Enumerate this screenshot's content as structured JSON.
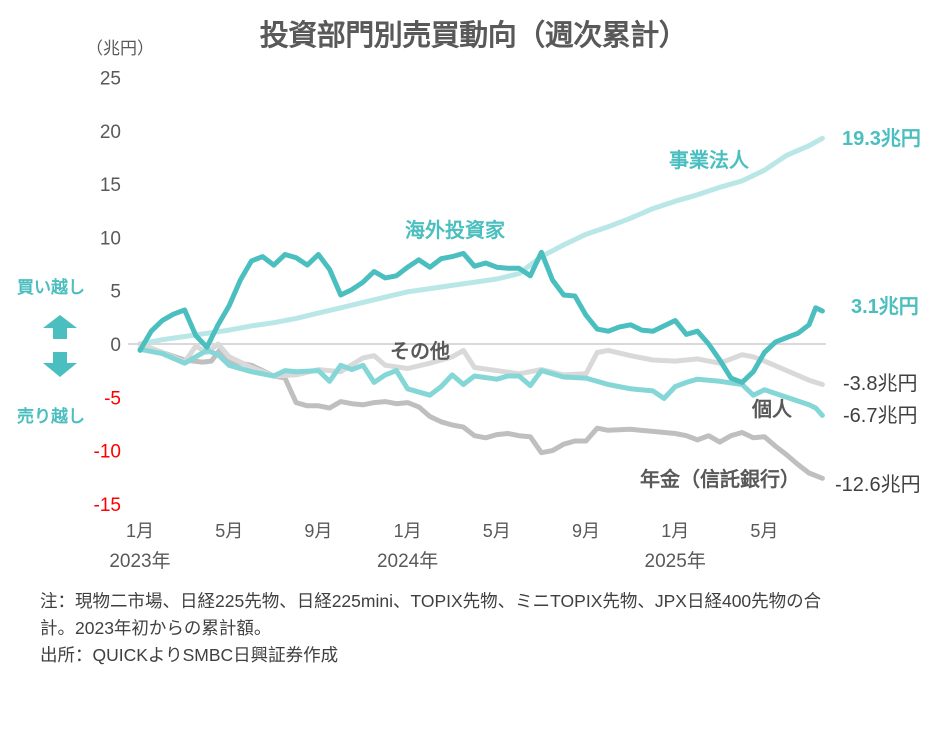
{
  "title": "投資部門別売買動向（週次累計）",
  "unit": "（兆円）",
  "side_labels": {
    "buy": "買い越し",
    "sell": "売り越し"
  },
  "notes": [
    "注：現物二市場、日経225先物、日経225mini、TOPIX先物、ミニTOPIX先物、JPX日経400先物の合",
    "計。2023年初からの累計額。",
    "出所：QUICKよりSMBC日興証券作成"
  ],
  "colors": {
    "foreign": "#4bbfbf",
    "corporate": "#b9e6e6",
    "individual": "#85d6d6",
    "other": "#d9d9d9",
    "pension": "#bfbfbf",
    "teal_text": "#4bbfbf",
    "axis_text": "#595959",
    "negative_tick": "#ff0000",
    "zero_line": "#d9d9d9"
  },
  "chart_data": {
    "type": "line",
    "title": "投資部門別売買動向（週次累計）",
    "xlabel": "",
    "ylabel": "（兆円）",
    "ylim": [
      -15,
      25
    ],
    "yticks": [
      25,
      20,
      15,
      10,
      5,
      0,
      -5,
      -10,
      -15
    ],
    "ytick_labels": [
      "25",
      "20",
      "15",
      "10",
      "5",
      "0",
      "-5",
      "-10",
      "-15"
    ],
    "xlim_months_from_jan2023": [
      0,
      31
    ],
    "xticks": [
      {
        "month": 0,
        "label": "1月",
        "year": "2023年"
      },
      {
        "month": 4,
        "label": "5月",
        "year": ""
      },
      {
        "month": 8,
        "label": "9月",
        "year": ""
      },
      {
        "month": 12,
        "label": "1月",
        "year": "2024年"
      },
      {
        "month": 16,
        "label": "5月",
        "year": ""
      },
      {
        "month": 20,
        "label": "9月",
        "year": ""
      },
      {
        "month": 24,
        "label": "1月",
        "year": "2025年"
      },
      {
        "month": 28,
        "label": "5月",
        "year": ""
      }
    ],
    "grid": false,
    "legend": "inline-labels",
    "series": [
      {
        "key": "corporate",
        "name": "事業法人",
        "end_label": "19.3兆円",
        "x": [
          0,
          1,
          2,
          3,
          4,
          5,
          6,
          7,
          8,
          9,
          10,
          11,
          12,
          13,
          14,
          15,
          16,
          17,
          18,
          19,
          20,
          21,
          22,
          23,
          24,
          25,
          26,
          27,
          28,
          29,
          30,
          30.6
        ],
        "values": [
          0,
          0.4,
          0.7,
          1.0,
          1.3,
          1.7,
          2.0,
          2.4,
          2.9,
          3.4,
          3.9,
          4.4,
          4.9,
          5.2,
          5.5,
          5.8,
          6.1,
          6.6,
          8.2,
          9.3,
          10.3,
          11.0,
          11.8,
          12.7,
          13.4,
          14.0,
          14.7,
          15.3,
          16.3,
          17.7,
          18.6,
          19.3
        ]
      },
      {
        "key": "foreign",
        "name": "海外投資家",
        "end_label": "3.1兆円",
        "x": [
          0,
          0.5,
          1,
          1.5,
          2,
          2.5,
          3,
          3.5,
          4,
          4.5,
          5,
          5.5,
          6,
          6.5,
          7,
          7.5,
          8,
          8.5,
          9,
          9.5,
          10,
          10.5,
          11,
          11.5,
          12,
          12.5,
          13,
          13.5,
          14,
          14.5,
          15,
          15.5,
          16,
          16.5,
          17,
          17.5,
          18,
          18.5,
          19,
          19.5,
          20,
          20.5,
          21,
          21.5,
          22,
          22.5,
          23,
          23.5,
          24,
          24.5,
          25,
          25.5,
          26,
          26.5,
          27,
          27.5,
          28,
          28.5,
          29,
          29.5,
          30,
          30.3,
          30.6
        ],
        "values": [
          -0.6,
          1.2,
          2.2,
          2.8,
          3.2,
          0.8,
          -0.3,
          1.8,
          3.6,
          6.0,
          7.8,
          8.2,
          7.4,
          8.4,
          8.1,
          7.4,
          8.4,
          7.0,
          4.6,
          5.1,
          5.8,
          6.8,
          6.2,
          6.4,
          7.2,
          7.9,
          7.2,
          8.0,
          8.2,
          8.5,
          7.3,
          7.6,
          7.2,
          7.1,
          7.1,
          6.4,
          8.6,
          6.0,
          4.6,
          4.5,
          2.7,
          1.4,
          1.2,
          1.6,
          1.8,
          1.3,
          1.2,
          1.7,
          2.2,
          0.9,
          1.2,
          0.0,
          -1.5,
          -3.2,
          -3.6,
          -2.6,
          -0.8,
          0.2,
          0.6,
          1.0,
          1.8,
          3.4,
          3.1
        ]
      },
      {
        "key": "other",
        "name": "その他",
        "end_label": "-3.8兆円",
        "x": [
          0,
          1,
          2,
          2.5,
          3,
          3.5,
          4,
          5,
          6,
          7,
          8,
          9,
          10,
          10.5,
          11,
          12,
          13,
          14,
          14.5,
          15,
          16,
          17,
          18,
          19,
          20,
          20.5,
          21,
          22,
          23,
          24,
          25,
          26,
          27,
          27.5,
          28,
          29,
          30,
          30.6
        ],
        "values": [
          0,
          -0.8,
          -1.7,
          -0.2,
          -0.8,
          0.0,
          -1.2,
          -2.2,
          -3.0,
          -2.9,
          -2.4,
          -2.6,
          -1.3,
          -1.1,
          -2.0,
          -2.3,
          -1.8,
          -1.2,
          -0.6,
          -2.2,
          -2.5,
          -2.8,
          -2.4,
          -2.9,
          -2.8,
          -0.8,
          -0.6,
          -1.1,
          -1.5,
          -1.6,
          -1.4,
          -1.8,
          -1.0,
          -1.2,
          -1.6,
          -2.5,
          -3.4,
          -3.8
        ]
      },
      {
        "key": "individual",
        "name": "個人",
        "end_label": "-6.7兆円",
        "x": [
          0,
          1,
          2,
          3,
          3.5,
          4,
          5,
          6,
          6.5,
          7,
          8,
          8.5,
          9,
          9.5,
          10,
          10.5,
          11,
          11.5,
          12,
          13,
          13.5,
          14,
          14.5,
          15,
          16,
          16.5,
          17,
          17.5,
          18,
          19,
          20,
          21,
          22,
          23,
          23.5,
          24,
          24.5,
          25,
          26,
          27,
          27.5,
          28,
          29,
          30,
          30.3,
          30.6
        ],
        "values": [
          -0.5,
          -0.9,
          -1.8,
          -0.6,
          -1.0,
          -2.0,
          -2.6,
          -3.0,
          -2.5,
          -2.6,
          -2.5,
          -3.5,
          -2.0,
          -2.4,
          -2.0,
          -3.6,
          -2.9,
          -2.5,
          -4.2,
          -4.8,
          -4.0,
          -2.9,
          -3.8,
          -3.0,
          -3.3,
          -3.0,
          -3.0,
          -3.9,
          -2.5,
          -3.1,
          -3.2,
          -3.8,
          -4.2,
          -4.4,
          -5.1,
          -4.0,
          -3.6,
          -3.3,
          -3.5,
          -3.8,
          -4.8,
          -4.3,
          -5.0,
          -5.7,
          -6.0,
          -6.7
        ]
      },
      {
        "key": "pension",
        "name": "年金（信託銀行）",
        "end_label": "-12.6兆円",
        "x": [
          0,
          1,
          2,
          2.8,
          3.2,
          3.6,
          4,
          5,
          6,
          6.5,
          7,
          7.5,
          8,
          8.5,
          9,
          9.5,
          10,
          10.5,
          11,
          11.5,
          12,
          12.5,
          13,
          13.5,
          14,
          14.5,
          15,
          15.5,
          16,
          16.5,
          17,
          17.5,
          18,
          18.5,
          19,
          19.5,
          20,
          20.5,
          21,
          22,
          23,
          24,
          24.5,
          25,
          25.5,
          26,
          26.5,
          27,
          27.5,
          28,
          28.5,
          29,
          29.5,
          30,
          30.6
        ],
        "values": [
          0,
          -0.8,
          -1.5,
          -1.7,
          -1.6,
          -0.5,
          -1.6,
          -2.0,
          -3.0,
          -3.2,
          -5.5,
          -5.8,
          -5.8,
          -6.0,
          -5.4,
          -5.6,
          -5.7,
          -5.5,
          -5.4,
          -5.6,
          -5.5,
          -5.9,
          -6.8,
          -7.3,
          -7.6,
          -7.8,
          -8.6,
          -8.8,
          -8.5,
          -8.4,
          -8.6,
          -8.7,
          -10.2,
          -10.0,
          -9.4,
          -9.1,
          -9.1,
          -7.9,
          -8.1,
          -8.0,
          -8.2,
          -8.4,
          -8.6,
          -9.0,
          -8.6,
          -9.2,
          -8.6,
          -8.3,
          -8.8,
          -8.7,
          -9.6,
          -10.4,
          -11.3,
          -12.1,
          -12.6
        ]
      }
    ],
    "annotations": [
      {
        "text": "海外投資家",
        "series": "foreign"
      },
      {
        "text": "事業法人",
        "series": "corporate"
      },
      {
        "text": "その他",
        "series": "other"
      },
      {
        "text": "個人",
        "series": "individual"
      },
      {
        "text": "年金（信託銀行）",
        "series": "pension"
      }
    ]
  }
}
